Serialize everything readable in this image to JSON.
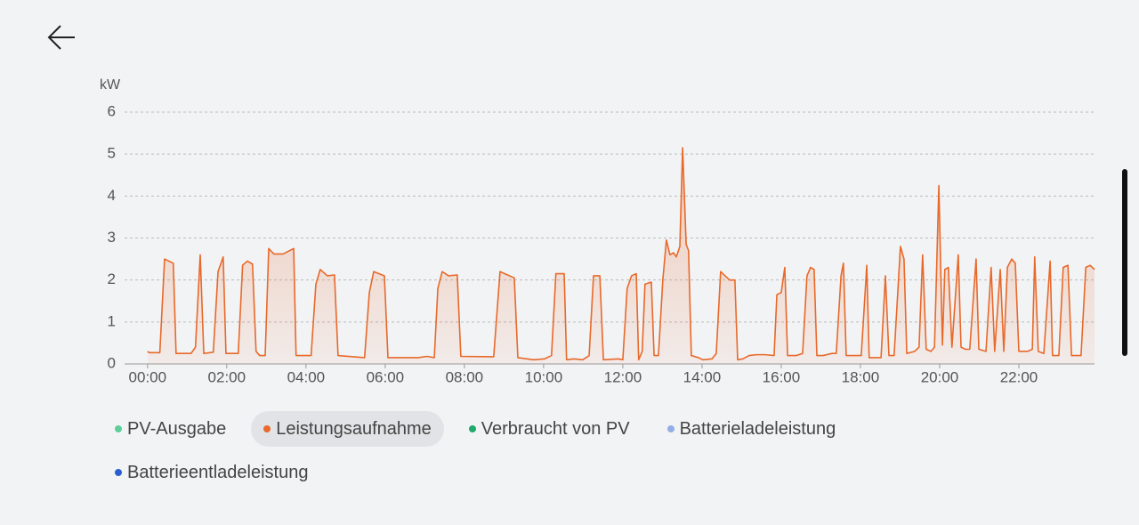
{
  "chart_data": {
    "type": "area",
    "y_label": "kW",
    "x": [
      0,
      0.04,
      0.31,
      0.43,
      0.54,
      0.65,
      0.72,
      1.1,
      1.21,
      1.33,
      1.42,
      1.66,
      1.78,
      1.91,
      1.98,
      2.29,
      2.4,
      2.52,
      2.65,
      2.74,
      2.83,
      2.97,
      3.06,
      3.19,
      3.42,
      3.69,
      3.75,
      4.13,
      4.25,
      4.36,
      4.54,
      4.72,
      4.81,
      5.48,
      5.6,
      5.71,
      5.98,
      6.07,
      6.83,
      7.06,
      7.24,
      7.33,
      7.44,
      7.6,
      7.82,
      7.91,
      8.74,
      8.9,
      9.26,
      9.35,
      9.75,
      10.02,
      10.2,
      10.31,
      10.52,
      10.58,
      10.76,
      10.99,
      11.15,
      11.26,
      11.42,
      11.51,
      11.89,
      12.0,
      12.11,
      12.22,
      12.34,
      12.4,
      12.49,
      12.56,
      12.72,
      12.79,
      12.9,
      13.01,
      13.1,
      13.19,
      13.28,
      13.35,
      13.44,
      13.51,
      13.6,
      13.66,
      13.73,
      13.91,
      14.02,
      14.25,
      14.36,
      14.47,
      14.58,
      14.7,
      14.83,
      14.9,
      15.03,
      15.19,
      15.37,
      15.6,
      15.82,
      15.89,
      16.0,
      16.09,
      16.16,
      16.38,
      16.54,
      16.65,
      16.74,
      16.83,
      16.9,
      17.06,
      17.28,
      17.39,
      17.51,
      17.57,
      17.64,
      18.02,
      18.16,
      18.22,
      18.52,
      18.63,
      18.72,
      18.85,
      19.01,
      19.1,
      19.17,
      19.37,
      19.48,
      19.57,
      19.66,
      19.78,
      19.87,
      19.98,
      20.07,
      20.13,
      20.22,
      20.31,
      20.47,
      20.54,
      20.65,
      20.76,
      20.92,
      20.99,
      21.17,
      21.3,
      21.39,
      21.53,
      21.62,
      21.71,
      21.82,
      21.91,
      22.0,
      22.22,
      22.34,
      22.4,
      22.49,
      22.63,
      22.79,
      22.85,
      23.01,
      23.12,
      23.24,
      23.33,
      23.57,
      23.69,
      23.8,
      23.91
    ],
    "series": [
      {
        "name": "Leistungsaufnahme",
        "color": "#e8692a",
        "values": [
          0.3,
          0.27,
          0.27,
          2.5,
          2.45,
          2.4,
          0.25,
          0.25,
          0.4,
          2.6,
          0.25,
          0.28,
          2.2,
          2.55,
          0.25,
          0.25,
          2.35,
          2.45,
          2.38,
          0.3,
          0.2,
          0.2,
          2.75,
          2.62,
          2.62,
          2.75,
          0.2,
          0.2,
          1.9,
          2.25,
          2.1,
          2.12,
          0.2,
          0.15,
          1.7,
          2.2,
          2.1,
          0.15,
          0.15,
          0.18,
          0.15,
          1.8,
          2.2,
          2.1,
          2.12,
          0.18,
          0.17,
          2.2,
          2.05,
          0.15,
          0.1,
          0.12,
          0.2,
          2.15,
          2.15,
          0.1,
          0.12,
          0.1,
          0.2,
          2.1,
          2.1,
          0.1,
          0.12,
          0.1,
          1.8,
          2.1,
          2.15,
          0.1,
          0.3,
          1.9,
          1.95,
          0.2,
          0.2,
          2.0,
          2.95,
          2.6,
          2.65,
          2.55,
          2.8,
          5.15,
          2.85,
          2.7,
          0.2,
          0.15,
          0.1,
          0.12,
          0.25,
          2.2,
          2.1,
          2.0,
          2.0,
          0.1,
          0.12,
          0.2,
          0.22,
          0.22,
          0.2,
          1.65,
          1.7,
          2.3,
          0.2,
          0.2,
          0.25,
          2.1,
          2.3,
          2.25,
          0.2,
          0.2,
          0.25,
          0.25,
          2.1,
          2.4,
          0.2,
          0.2,
          2.35,
          0.15,
          0.15,
          2.1,
          0.2,
          0.2,
          2.8,
          2.5,
          0.25,
          0.3,
          0.4,
          2.6,
          0.35,
          0.3,
          0.4,
          4.25,
          0.45,
          2.25,
          2.3,
          0.4,
          2.6,
          0.4,
          0.35,
          0.35,
          2.5,
          0.35,
          0.3,
          2.3,
          0.3,
          2.25,
          0.3,
          2.3,
          2.5,
          2.4,
          0.3,
          0.3,
          0.35,
          2.55,
          0.3,
          0.25,
          2.45,
          0.2,
          0.2,
          2.3,
          2.35,
          0.2,
          0.2,
          2.3,
          2.35,
          2.25
        ]
      }
    ],
    "xlim": [
      -0.58,
      23.91
    ],
    "xticks": [
      {
        "value": 0,
        "label": "00:00"
      },
      {
        "value": 2,
        "label": "02:00"
      },
      {
        "value": 4,
        "label": "04:00"
      },
      {
        "value": 6,
        "label": "06:00"
      },
      {
        "value": 8,
        "label": "08:00"
      },
      {
        "value": 10,
        "label": "10:00"
      },
      {
        "value": 12,
        "label": "12:00"
      },
      {
        "value": 14,
        "label": "14:00"
      },
      {
        "value": 16,
        "label": "16:00"
      },
      {
        "value": 18,
        "label": "18:00"
      },
      {
        "value": 20,
        "label": "20:00"
      },
      {
        "value": 22,
        "label": "22:00"
      }
    ],
    "ylim": [
      0,
      6
    ],
    "yticks": [
      0,
      1,
      2,
      3,
      4,
      5,
      6
    ],
    "grid": true,
    "legend": {
      "selected": 1,
      "items": [
        {
          "name": "PV-Ausgabe",
          "color": "#5ccf98"
        },
        {
          "name": "Leistungsaufnahme",
          "color": "#e8692a"
        },
        {
          "name": "Verbraucht von PV",
          "color": "#1faa6b"
        },
        {
          "name": "Batterieladeleistung",
          "color": "#93aee6"
        },
        {
          "name": "Batterieentladeleistung",
          "color": "#2b5fd0"
        }
      ]
    }
  }
}
